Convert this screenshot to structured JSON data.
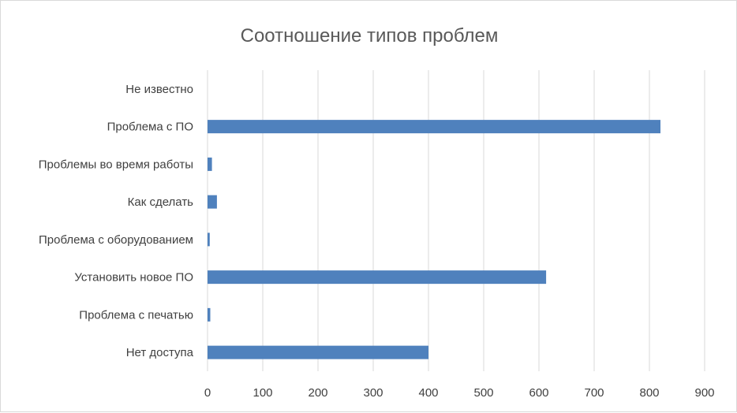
{
  "chart_data": {
    "type": "bar",
    "orientation": "horizontal",
    "title": "Соотношение типов проблем",
    "xlabel": "",
    "ylabel": "",
    "categories": [
      "Не известно",
      "Проблема с ПО",
      "Проблемы во время работы",
      "Как сделать",
      "Проблема с оборудованием",
      "Установить новое ПО",
      "Проблема с печатью",
      "Нет доступа"
    ],
    "values": [
      0,
      820,
      8,
      17,
      4,
      613,
      5,
      400
    ],
    "xlim": [
      0,
      900
    ],
    "xticks": [
      0,
      100,
      200,
      300,
      400,
      500,
      600,
      700,
      800,
      900
    ],
    "grid": true,
    "legend": "none",
    "bar_color": "#4f81bd"
  }
}
